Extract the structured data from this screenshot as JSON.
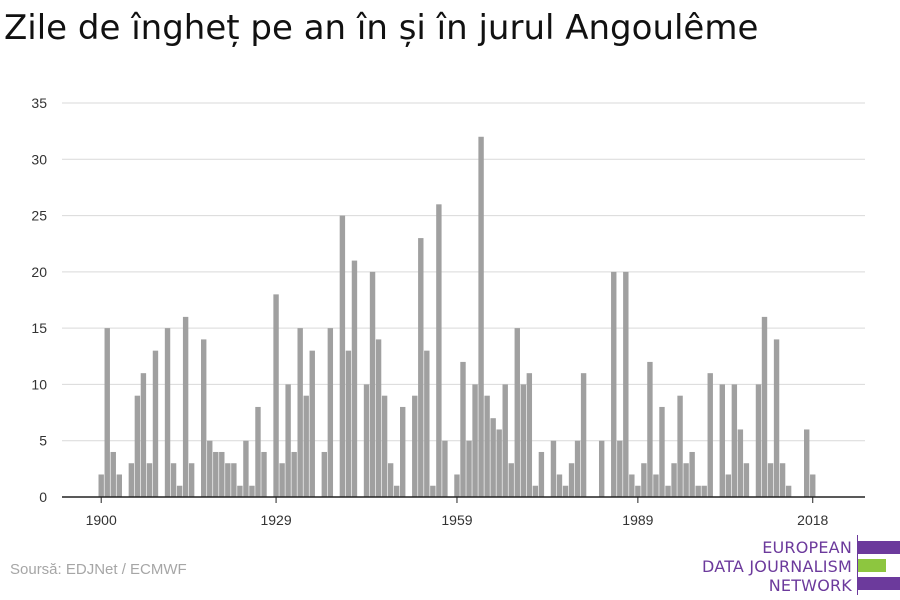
{
  "title": "Zile de îngheț pe an în și în jurul Angoulême",
  "source": "Soursă: EDJNet / ECMWF",
  "logo": {
    "lines": [
      "EUROPEAN",
      "DATA JOURNALISM",
      "NETWORK"
    ],
    "colors": {
      "purple": "#6c3a9c",
      "green": "#8dc63f"
    }
  },
  "colors": {
    "bar": "#a0a0a0",
    "grid": "#d9d9d9",
    "axis": "#222222",
    "text": "#333333"
  },
  "chart_data": {
    "type": "bar",
    "title": "Zile de îngheț pe an în și în jurul Angoulême",
    "xlabel": "",
    "ylabel": "",
    "ylim": [
      0,
      35
    ],
    "yticks": [
      0,
      5,
      10,
      15,
      20,
      25,
      30,
      35
    ],
    "xticks": [
      1900,
      1929,
      1959,
      1989,
      2018
    ],
    "grid": true,
    "x_start": 1900,
    "x_end": 2020,
    "values": [
      2,
      15,
      4,
      2,
      0,
      3,
      9,
      11,
      3,
      13,
      0,
      15,
      3,
      1,
      16,
      3,
      0,
      14,
      5,
      4,
      4,
      3,
      3,
      1,
      5,
      1,
      8,
      4,
      0,
      18,
      3,
      10,
      4,
      15,
      9,
      13,
      0,
      4,
      15,
      0,
      25,
      13,
      21,
      0,
      10,
      20,
      14,
      9,
      3,
      1,
      8,
      0,
      9,
      23,
      13,
      1,
      26,
      5,
      0,
      2,
      12,
      5,
      10,
      32,
      9,
      7,
      6,
      10,
      3,
      15,
      10,
      11,
      1,
      4,
      0,
      5,
      2,
      1,
      3,
      5,
      11,
      0,
      0,
      5,
      0,
      20,
      5,
      20,
      2,
      1,
      3,
      12,
      2,
      8,
      1,
      3,
      9,
      3,
      4,
      1,
      1,
      11,
      0,
      10,
      2,
      10,
      6,
      3,
      0,
      10,
      16,
      3,
      14,
      3,
      1,
      0,
      0,
      6,
      2,
      0,
      0
    ]
  }
}
